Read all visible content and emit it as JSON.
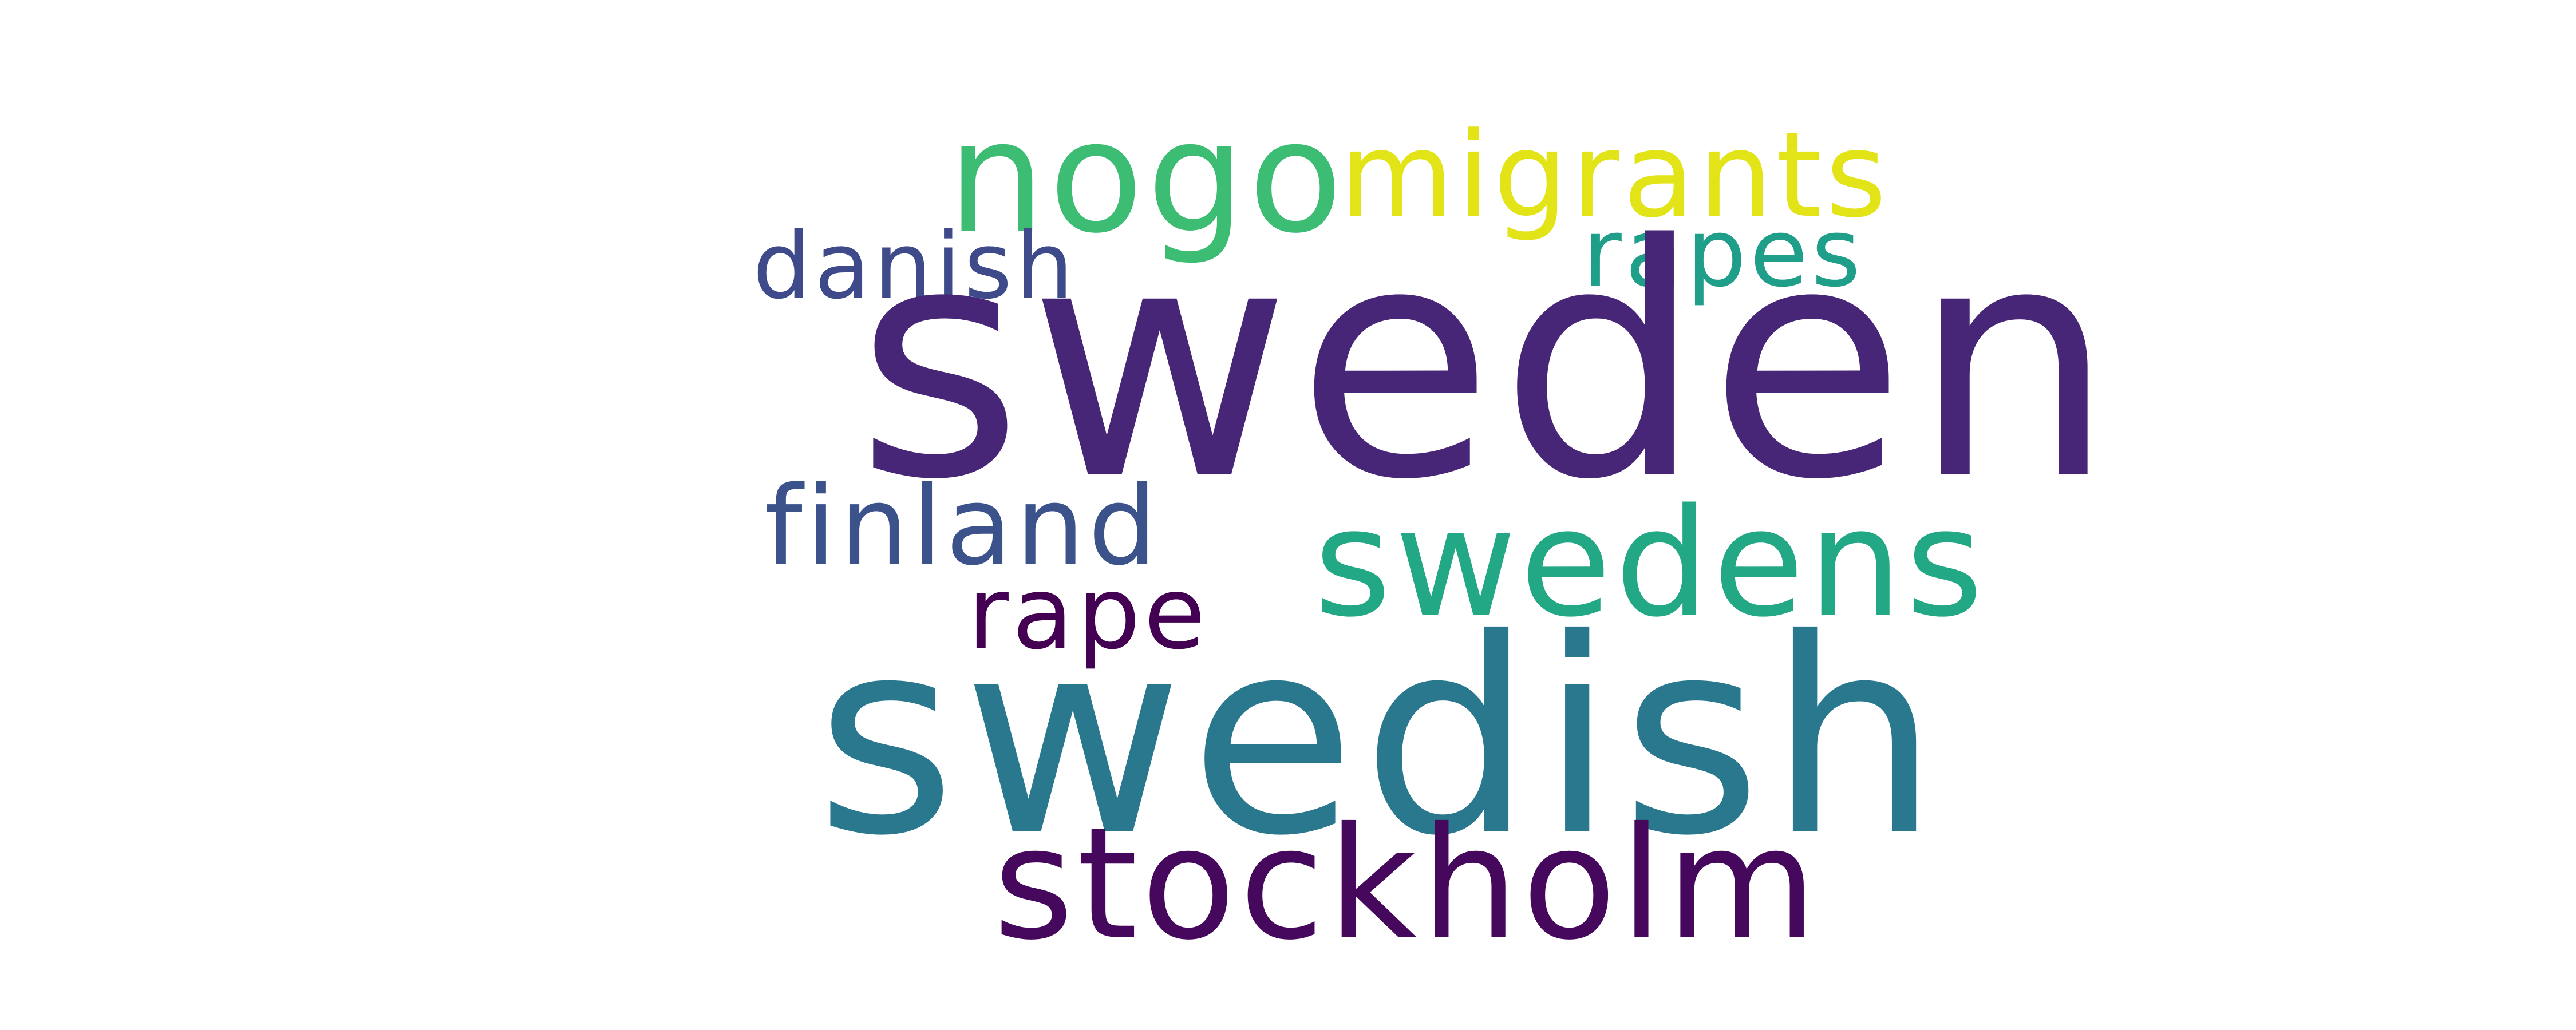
{
  "words": {
    "sweden": {
      "text": "sweden",
      "color": "#482677"
    },
    "swedish": {
      "text": "swedish",
      "color": "#2a788e"
    },
    "nogo": {
      "text": "nogo",
      "color": "#3dbc74"
    },
    "migrants": {
      "text": "migrants",
      "color": "#e2e418"
    },
    "rapes": {
      "text": "rapes",
      "color": "#1f9e89"
    },
    "danish": {
      "text": "danish",
      "color": "#3e4a89"
    },
    "finland": {
      "text": "finland",
      "color": "#3b528b"
    },
    "swedens": {
      "text": "swedens",
      "color": "#22a884"
    },
    "rape": {
      "text": "rape",
      "color": "#440154"
    },
    "stockholm": {
      "text": "stockholm",
      "color": "#46085c"
    }
  }
}
